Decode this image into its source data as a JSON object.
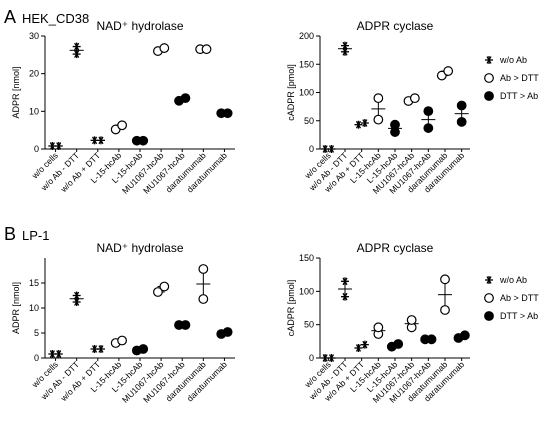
{
  "panels": [
    {
      "letter": "A",
      "name": "HEK_CD38",
      "charts": [
        {
          "type": "scatter",
          "title": "NAD⁺ hydrolase",
          "ylabel": "ADPR [nmol]",
          "ylim": [
            0,
            30
          ],
          "yticks": [
            0,
            10,
            20,
            30
          ],
          "categories": [
            "w/o cells",
            "w/o Ab - DTT",
            "w/o Ab + DTT",
            "L-15-hcAb",
            "L-15-hcAb",
            "MU1067-hcAb",
            "MU1067-hcAb",
            "daratumumab",
            "daratumumab"
          ],
          "points": [
            {
              "cat": 0,
              "y": [
                0.8,
                0.8
              ],
              "marker": "star",
              "err": false
            },
            {
              "cat": 1,
              "y": [
                25.2,
                27.2
              ],
              "marker": "star",
              "err": true
            },
            {
              "cat": 2,
              "y": [
                2.3,
                2.3
              ],
              "marker": "star",
              "err": false
            },
            {
              "cat": 3,
              "y": [
                5.2,
                6.3
              ],
              "marker": "open",
              "err": true
            },
            {
              "cat": 4,
              "y": [
                2.2,
                2.2
              ],
              "marker": "filled",
              "err": false
            },
            {
              "cat": 5,
              "y": [
                26.0,
                26.8
              ],
              "marker": "open",
              "err": true
            },
            {
              "cat": 6,
              "y": [
                12.8,
                13.5
              ],
              "marker": "filled",
              "err": true
            },
            {
              "cat": 7,
              "y": [
                26.5,
                26.5
              ],
              "marker": "open",
              "err": false
            },
            {
              "cat": 8,
              "y": [
                9.5,
                9.5
              ],
              "marker": "filled",
              "err": false
            }
          ]
        },
        {
          "type": "scatter",
          "title": "ADPR cyclase",
          "ylabel": "cADPR [pmol]",
          "ylim": [
            0,
            200
          ],
          "yticks": [
            0,
            50,
            100,
            150,
            200
          ],
          "categories": [
            "w/o cells",
            "w/o Ab - DTT",
            "w/o Ab + DTT",
            "L-15-hcAb",
            "L-15-hcAb",
            "MU1067-hcAb",
            "MU1067-hcAb",
            "daratumumab",
            "daratumumab"
          ],
          "points": [
            {
              "cat": 0,
              "y": [
                0,
                0
              ],
              "marker": "star",
              "err": false
            },
            {
              "cat": 1,
              "y": [
                172,
                183
              ],
              "marker": "star",
              "err": true
            },
            {
              "cat": 2,
              "y": [
                43,
                46
              ],
              "marker": "star",
              "err": false
            },
            {
              "cat": 3,
              "y": [
                52,
                90
              ],
              "marker": "open",
              "err": true
            },
            {
              "cat": 4,
              "y": [
                30,
                43
              ],
              "marker": "filled",
              "err": true
            },
            {
              "cat": 5,
              "y": [
                85,
                90
              ],
              "marker": "open",
              "err": true
            },
            {
              "cat": 6,
              "y": [
                37,
                67
              ],
              "marker": "filled",
              "err": true
            },
            {
              "cat": 7,
              "y": [
                130,
                138
              ],
              "marker": "open",
              "err": true
            },
            {
              "cat": 8,
              "y": [
                48,
                77
              ],
              "marker": "filled",
              "err": true
            }
          ]
        }
      ]
    },
    {
      "letter": "B",
      "name": "LP-1",
      "charts": [
        {
          "type": "scatter",
          "title": "NAD⁺ hydrolase",
          "ylabel": "ADPR [nmol]",
          "ylim": [
            0,
            20
          ],
          "yticks": [
            0,
            5,
            10,
            15
          ],
          "categories": [
            "w/o cells",
            "w/o Ab - DTT",
            "w/o Ab + DTT",
            "L-15-hcAb",
            "L-15-hcAb",
            "MU1067-hcAb",
            "MU1067-hcAb",
            "daratumumab",
            "daratumumab"
          ],
          "points": [
            {
              "cat": 0,
              "y": [
                0.8,
                0.8
              ],
              "marker": "star",
              "err": false
            },
            {
              "cat": 1,
              "y": [
                11.2,
                12.5
              ],
              "marker": "star",
              "err": true
            },
            {
              "cat": 2,
              "y": [
                1.8,
                1.8
              ],
              "marker": "star",
              "err": false
            },
            {
              "cat": 3,
              "y": [
                3.0,
                3.5
              ],
              "marker": "open",
              "err": true
            },
            {
              "cat": 4,
              "y": [
                1.5,
                1.8
              ],
              "marker": "filled",
              "err": false
            },
            {
              "cat": 5,
              "y": [
                13.2,
                14.3
              ],
              "marker": "open",
              "err": true
            },
            {
              "cat": 6,
              "y": [
                6.6,
                6.6
              ],
              "marker": "filled",
              "err": false
            },
            {
              "cat": 7,
              "y": [
                11.8,
                17.8
              ],
              "marker": "open",
              "err": true
            },
            {
              "cat": 8,
              "y": [
                4.8,
                5.2
              ],
              "marker": "filled",
              "err": false
            }
          ]
        },
        {
          "type": "scatter",
          "title": "ADPR cyclase",
          "ylabel": "cADPR [pmol]",
          "ylim": [
            0,
            150
          ],
          "yticks": [
            0,
            50,
            100,
            150
          ],
          "categories": [
            "w/o cells",
            "w/o Ab - DTT",
            "w/o Ab + DTT",
            "L-15-hcAb",
            "L-15-hcAb",
            "MU1067-hcAb",
            "MU1067-hcAb",
            "daratumumab",
            "daratumumab"
          ],
          "points": [
            {
              "cat": 0,
              "y": [
                0,
                0
              ],
              "marker": "star",
              "err": false
            },
            {
              "cat": 1,
              "y": [
                92,
                115
              ],
              "marker": "star",
              "err": true
            },
            {
              "cat": 2,
              "y": [
                15,
                20
              ],
              "marker": "star",
              "err": false
            },
            {
              "cat": 3,
              "y": [
                36,
                46
              ],
              "marker": "open",
              "err": true
            },
            {
              "cat": 4,
              "y": [
                17,
                21
              ],
              "marker": "filled",
              "err": false
            },
            {
              "cat": 5,
              "y": [
                46,
                57
              ],
              "marker": "open",
              "err": true
            },
            {
              "cat": 6,
              "y": [
                28,
                28
              ],
              "marker": "filled",
              "err": false
            },
            {
              "cat": 7,
              "y": [
                72,
                118
              ],
              "marker": "open",
              "err": true
            },
            {
              "cat": 8,
              "y": [
                30,
                34
              ],
              "marker": "filled",
              "err": false
            }
          ]
        }
      ]
    }
  ],
  "legend": [
    {
      "marker": "star",
      "label": "w/o Ab"
    },
    {
      "marker": "open",
      "label": "Ab > DTT"
    },
    {
      "marker": "filled",
      "label": "DTT > Ab"
    }
  ]
}
